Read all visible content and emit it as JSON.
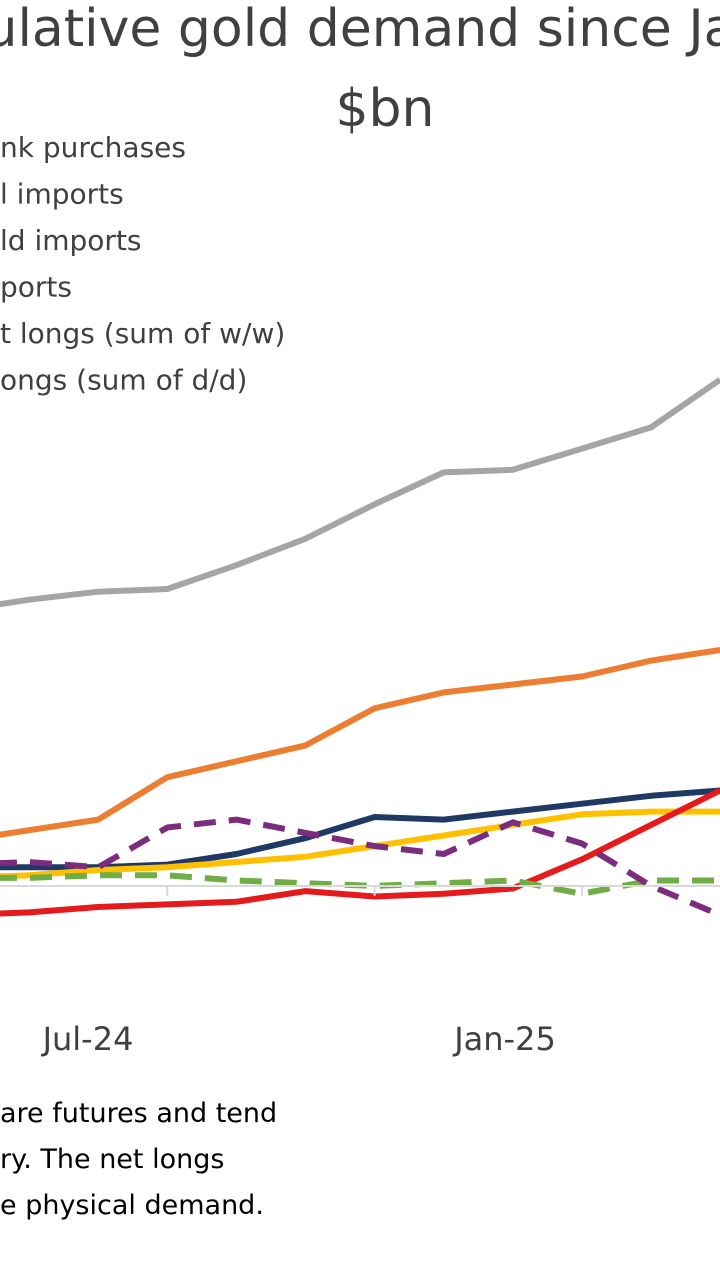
{
  "chart_data": {
    "type": "line",
    "title_lines": [
      "ulative gold demand since Ja",
      "$bn"
    ],
    "xlabel": "",
    "ylabel": "",
    "x_tick_labels": [
      "Jul-24",
      "Jan-25"
    ],
    "legend_placement": "top-left",
    "legend_entries": [
      "nk purchases",
      "l imports",
      "ld imports",
      "ports",
      "t longs (sum of w/w)",
      "ongs (sum of d/d)"
    ],
    "grid": false,
    "series": [
      {
        "color": "#A5A5A5",
        "dash": "solid",
        "points": [
          [
            0,
            115
          ],
          [
            1,
            119
          ],
          [
            2,
            122
          ],
          [
            3,
            123
          ],
          [
            4,
            132
          ],
          [
            5,
            142
          ],
          [
            6,
            155
          ],
          [
            7,
            167
          ],
          [
            8,
            168
          ],
          [
            9,
            176
          ],
          [
            10,
            184
          ],
          [
            11,
            202
          ]
        ]
      },
      {
        "color": "#ED7D31",
        "dash": "solid",
        "points": [
          [
            0,
            28
          ],
          [
            1,
            32
          ],
          [
            2,
            36
          ],
          [
            3,
            52
          ],
          [
            4,
            58
          ],
          [
            5,
            64
          ],
          [
            6,
            78
          ],
          [
            7,
            84
          ],
          [
            8,
            87
          ],
          [
            9,
            90
          ],
          [
            10,
            96
          ],
          [
            11,
            100
          ]
        ]
      },
      {
        "color": "#1F3864",
        "dash": "solid",
        "points": [
          [
            0,
            18
          ],
          [
            1,
            18
          ],
          [
            2,
            18
          ],
          [
            3,
            19
          ],
          [
            4,
            23
          ],
          [
            5,
            29
          ],
          [
            6,
            37
          ],
          [
            7,
            36
          ],
          [
            8,
            39
          ],
          [
            9,
            42
          ],
          [
            10,
            45
          ],
          [
            11,
            47
          ]
        ]
      },
      {
        "color": "#FFC000",
        "dash": "solid",
        "points": [
          [
            0,
            14
          ],
          [
            1,
            15
          ],
          [
            2,
            17
          ],
          [
            3,
            18
          ],
          [
            4,
            20
          ],
          [
            5,
            22
          ],
          [
            6,
            26
          ],
          [
            7,
            30
          ],
          [
            8,
            34
          ],
          [
            9,
            38
          ],
          [
            10,
            39
          ],
          [
            11,
            39
          ]
        ]
      },
      {
        "color": "#E41A1C",
        "dash": "solid",
        "points": [
          [
            0,
            0
          ],
          [
            1,
            1
          ],
          [
            2,
            3
          ],
          [
            3,
            4
          ],
          [
            4,
            5
          ],
          [
            5,
            9
          ],
          [
            6,
            7
          ],
          [
            7,
            8
          ],
          [
            8,
            10
          ],
          [
            9,
            21
          ],
          [
            10,
            34
          ],
          [
            11,
            47
          ]
        ]
      },
      {
        "color": "#70AD47",
        "dash": "dashed",
        "points": [
          [
            0,
            14
          ],
          [
            1,
            14
          ],
          [
            2,
            15
          ],
          [
            3,
            15
          ],
          [
            4,
            13
          ],
          [
            5,
            12
          ],
          [
            6,
            11
          ],
          [
            7,
            12
          ],
          [
            8,
            13
          ],
          [
            9,
            8
          ],
          [
            10,
            13
          ],
          [
            11,
            13
          ]
        ]
      },
      {
        "color": "#7B2C7E",
        "dash": "dashed",
        "points": [
          [
            0,
            19
          ],
          [
            1,
            20
          ],
          [
            2,
            18
          ],
          [
            3,
            33
          ],
          [
            4,
            36
          ],
          [
            5,
            31
          ],
          [
            6,
            26
          ],
          [
            7,
            23
          ],
          [
            8,
            35
          ],
          [
            9,
            27
          ],
          [
            10,
            11
          ],
          [
            11,
            0
          ]
        ]
      }
    ],
    "footnote_lines": [
      "are futures and tend",
      "ry. The net longs",
      "e physical demand."
    ]
  }
}
